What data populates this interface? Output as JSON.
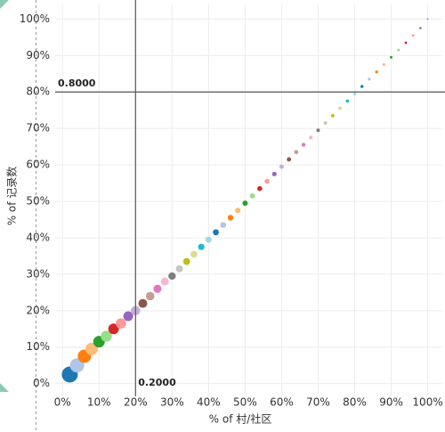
{
  "chart_data": {
    "type": "scatter",
    "x_label": "% of 村/社区",
    "y_label": "% of 记录数",
    "xlim": [
      -2,
      104
    ],
    "ylim": [
      -3.5,
      104
    ],
    "grid": true,
    "xticks": [
      {
        "value": 0,
        "label": "0%"
      },
      {
        "value": 10,
        "label": "10%"
      },
      {
        "value": 20,
        "label": "20%"
      },
      {
        "value": 30,
        "label": "30%"
      },
      {
        "value": 40,
        "label": "40%"
      },
      {
        "value": 50,
        "label": "50%"
      },
      {
        "value": 60,
        "label": "60%"
      },
      {
        "value": 70,
        "label": "70%"
      },
      {
        "value": 80,
        "label": "80%"
      },
      {
        "value": 90,
        "label": "90%"
      },
      {
        "value": 100,
        "label": "100%"
      }
    ],
    "yticks": [
      {
        "value": 0,
        "label": "0%"
      },
      {
        "value": 10,
        "label": "10%"
      },
      {
        "value": 20,
        "label": "20%"
      },
      {
        "value": 30,
        "label": "30%"
      },
      {
        "value": 40,
        "label": "40%"
      },
      {
        "value": 50,
        "label": "50%"
      },
      {
        "value": 60,
        "label": "60%"
      },
      {
        "value": 70,
        "label": "70%"
      },
      {
        "value": 80,
        "label": "80%"
      },
      {
        "value": 90,
        "label": "90%"
      },
      {
        "value": 100,
        "label": "100%"
      }
    ],
    "reference_lines": [
      {
        "axis": "x",
        "value": 20,
        "label": "0.2000"
      },
      {
        "axis": "y",
        "value": 80,
        "label": "0.8000"
      }
    ],
    "x": [
      2,
      4,
      6,
      8,
      10,
      12,
      14,
      16,
      18,
      20,
      22,
      24,
      26,
      28,
      30,
      32,
      34,
      36,
      38,
      40,
      42,
      44,
      46,
      48,
      50,
      52,
      54,
      56,
      58,
      60,
      62,
      64,
      66,
      68,
      70,
      72,
      74,
      76,
      78,
      80,
      82,
      84,
      86,
      88,
      90,
      92,
      94,
      96,
      98,
      100
    ],
    "values": [
      2.5,
      5,
      7.5,
      9.5,
      11.5,
      13,
      15,
      16.5,
      18.5,
      20,
      22,
      24,
      26,
      28,
      29.5,
      31.5,
      33.5,
      35.5,
      37.5,
      39.5,
      41.5,
      43.5,
      45.5,
      47.5,
      49.5,
      51.5,
      53.5,
      55.5,
      57.5,
      59.5,
      61.5,
      63.5,
      65.5,
      67.5,
      69.5,
      71.5,
      73.5,
      75.5,
      77.5,
      79.5,
      81.5,
      83.5,
      85.5,
      87.5,
      89.5,
      91.5,
      93.5,
      95.5,
      97.5,
      100
    ],
    "sizes": [
      9,
      8,
      7.5,
      7,
      6.5,
      6.2,
      6,
      5.8,
      5.5,
      5.3,
      5,
      4.8,
      4.6,
      4.4,
      4.2,
      4,
      3.9,
      3.8,
      3.6,
      3.5,
      3.4,
      3.3,
      3.2,
      3.1,
      3,
      2.9,
      2.8,
      2.7,
      2.6,
      2.5,
      2.4,
      2.3,
      2.2,
      2.1,
      2,
      2,
      1.9,
      1.9,
      1.8,
      1.8,
      1.7,
      1.7,
      1.6,
      1.6,
      1.5,
      1.5,
      1.4,
      1.4,
      1.3,
      1.3
    ],
    "colors": [
      "#1f77b4",
      "#aec7e8",
      "#ff7f0e",
      "#ffbb78",
      "#2ca02c",
      "#98df8a",
      "#d62728",
      "#ff9896",
      "#9467bd",
      "#c5b0d5",
      "#8c564b",
      "#c49c94",
      "#e377c2",
      "#f7b6d2",
      "#7f7f7f",
      "#c7c7c7",
      "#bcbd22",
      "#dbdb8d",
      "#17becf",
      "#9edae5",
      "#1f77b4",
      "#aec7e8",
      "#ff7f0e",
      "#ffbb78",
      "#2ca02c",
      "#98df8a",
      "#d62728",
      "#ff9896",
      "#9467bd",
      "#c5b0d5",
      "#8c564b",
      "#c49c94",
      "#e377c2",
      "#f7b6d2",
      "#7f7f7f",
      "#c7c7c7",
      "#bcbd22",
      "#dbdb8d",
      "#17becf",
      "#9edae5",
      "#1f77b4",
      "#aec7e8",
      "#ff7f0e",
      "#ffbb78",
      "#2ca02c",
      "#98df8a",
      "#d62728",
      "#ff9896",
      "#9467bd",
      "#c5b0d5"
    ]
  }
}
